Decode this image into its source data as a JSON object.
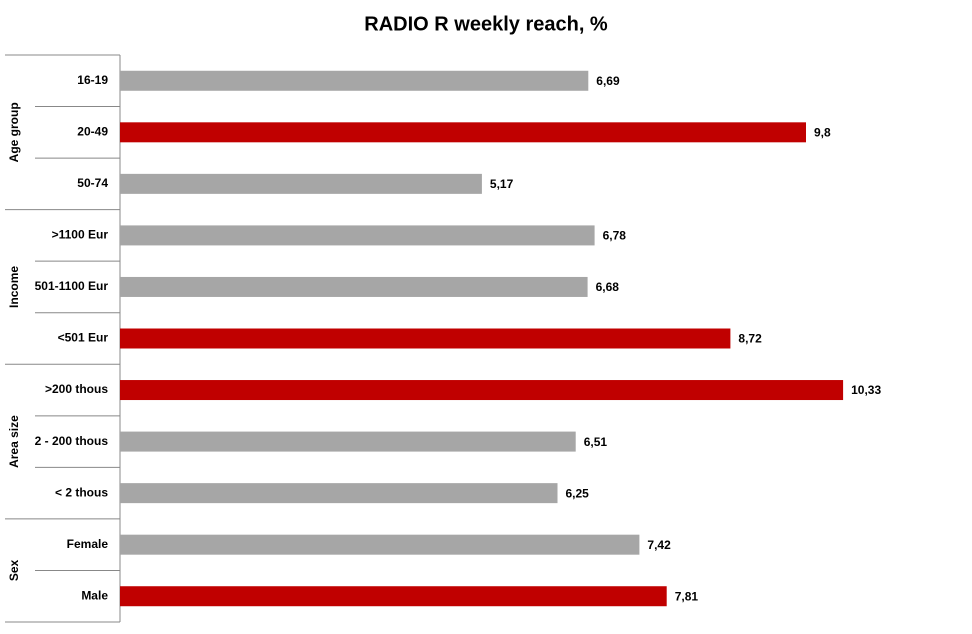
{
  "chart_data": {
    "type": "bar",
    "orientation": "horizontal",
    "title": "RADIO R weekly reach, %",
    "xlim": [
      0,
      12
    ],
    "groups": [
      {
        "name": "Age group",
        "categories": [
          "16-19",
          "20-49",
          "50-74"
        ],
        "values": [
          6.69,
          9.8,
          5.17
        ],
        "value_labels": [
          "6,69",
          "9,8",
          "5,17"
        ],
        "colors": [
          "#a6a6a6",
          "#c00000",
          "#a6a6a6"
        ]
      },
      {
        "name": "Income",
        "categories": [
          ">1100 Eur",
          "501-1100 Eur",
          "<501 Eur"
        ],
        "values": [
          6.78,
          6.68,
          8.72
        ],
        "value_labels": [
          "6,78",
          "6,68",
          "8,72"
        ],
        "colors": [
          "#a6a6a6",
          "#a6a6a6",
          "#c00000"
        ]
      },
      {
        "name": "Area size",
        "categories": [
          ">200 thous",
          "2 - 200 thous",
          "< 2 thous"
        ],
        "values": [
          10.33,
          6.51,
          6.25
        ],
        "value_labels": [
          "10,33",
          "6,51",
          "6,25"
        ],
        "colors": [
          "#c00000",
          "#a6a6a6",
          "#a6a6a6"
        ]
      },
      {
        "name": "Sex",
        "categories": [
          "Female",
          "Male"
        ],
        "values": [
          7.42,
          7.81
        ],
        "value_labels": [
          "7,42",
          "7,81"
        ],
        "colors": [
          "#a6a6a6",
          "#c00000"
        ]
      }
    ]
  }
}
